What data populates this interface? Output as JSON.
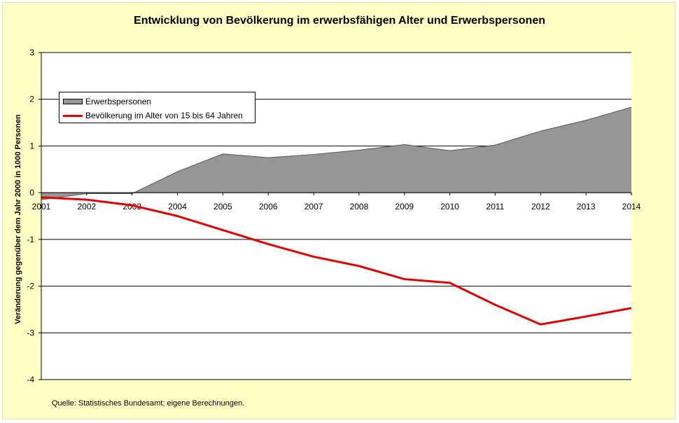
{
  "chart_data": {
    "type": "area+line",
    "title": "Entwicklung von Bevölkerung im erwerbsfähigen Alter und Erwerbspersonen",
    "ylabel": "Veränderung gegenüber dem Jahr 2000 in 1000 Personen",
    "xlabel": "",
    "categories": [
      "2001",
      "2002",
      "2003",
      "2004",
      "2005",
      "2006",
      "2007",
      "2008",
      "2009",
      "2010",
      "2011",
      "2012",
      "2013",
      "2014"
    ],
    "ylim": [
      -4,
      3
    ],
    "yticks": [
      "3",
      "2",
      "1",
      "0",
      "-1",
      "-2",
      "-3",
      "-4"
    ],
    "series": [
      {
        "name": "Erwerbspersonen",
        "kind": "area",
        "color": "#969696",
        "values": [
          -0.15,
          -0.02,
          -0.02,
          0.45,
          0.83,
          0.75,
          0.82,
          0.91,
          1.03,
          0.9,
          1.02,
          1.32,
          1.55,
          1.83
        ]
      },
      {
        "name": "Bevölkerung im Alter von 15 bis 64 Jahren",
        "kind": "line",
        "color": "#e00000",
        "values": [
          -0.1,
          -0.15,
          -0.27,
          -0.5,
          -0.8,
          -1.1,
          -1.37,
          -1.57,
          -1.85,
          -1.93,
          -2.4,
          -2.82,
          -2.65,
          -2.47
        ]
      }
    ],
    "grid": true,
    "legend_position": "top-left"
  },
  "source": "Quelle: Statistisches Bundesamt; eigene Berechnungen.",
  "colors": {
    "background": "#ffffc6",
    "plot": "#ffffff",
    "area": "#969696",
    "line": "#e00000"
  }
}
